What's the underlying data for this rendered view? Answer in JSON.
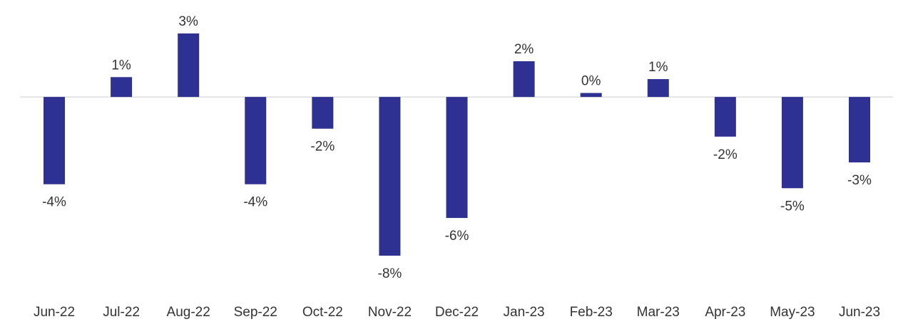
{
  "chart_data": {
    "type": "bar",
    "categories": [
      "Jun-22",
      "Jul-22",
      "Aug-22",
      "Sep-22",
      "Oct-22",
      "Nov-22",
      "Dec-22",
      "Jan-23",
      "Feb-23",
      "Mar-23",
      "Apr-23",
      "May-23",
      "Jun-23"
    ],
    "values": [
      -4.4,
      1.0,
      3.2,
      -4.4,
      -1.6,
      -8.0,
      -6.1,
      1.8,
      0.2,
      0.9,
      -2.0,
      -4.6,
      -3.3
    ],
    "value_labels": [
      "-4%",
      "1%",
      "3%",
      "-4%",
      "-2%",
      "-8%",
      "-6%",
      "2%",
      "0%",
      "1%",
      "-2%",
      "-5%",
      "-3%"
    ],
    "color": "#2e3192"
  }
}
